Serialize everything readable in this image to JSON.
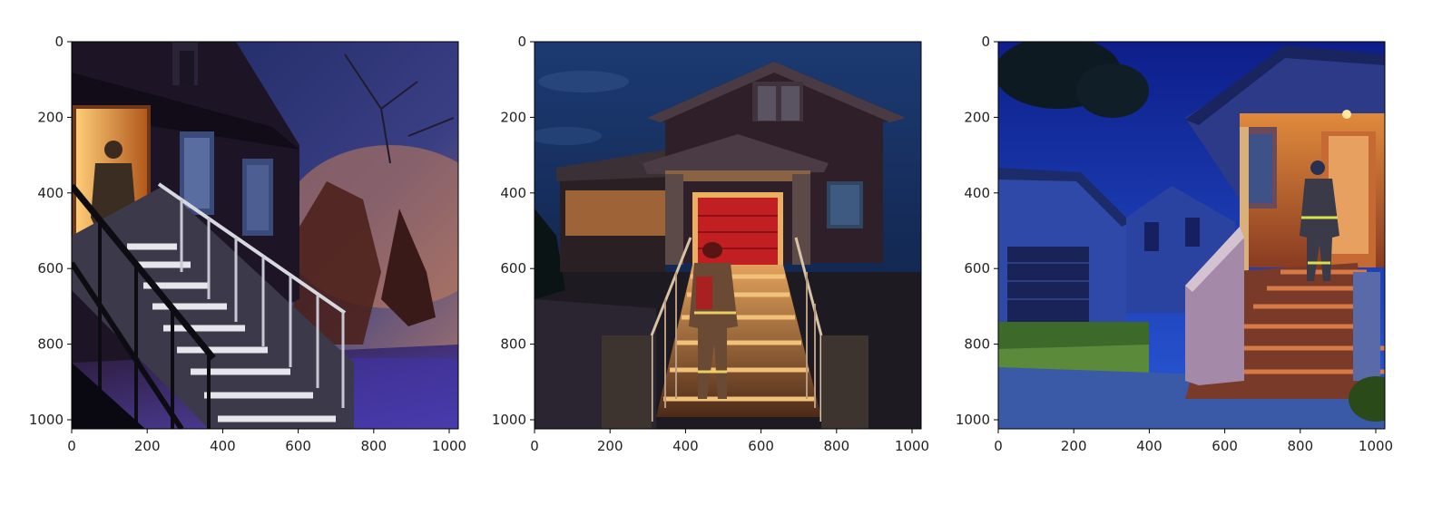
{
  "figure": {
    "panels": [
      {
        "id": "panel-1",
        "description_hidden": true,
        "x_ticks": [
          "0",
          "200",
          "400",
          "600",
          "800",
          "1000"
        ],
        "y_ticks": [
          "0",
          "200",
          "400",
          "600",
          "800",
          "1000"
        ]
      },
      {
        "id": "panel-2",
        "x_ticks": [
          "0",
          "200",
          "400",
          "600",
          "800",
          "1000"
        ],
        "y_ticks": [
          "0",
          "200",
          "400",
          "600",
          "800",
          "1000"
        ]
      },
      {
        "id": "panel-3",
        "x_ticks": [
          "0",
          "200",
          "400",
          "600",
          "800",
          "1000"
        ],
        "y_ticks": [
          "0",
          "200",
          "400",
          "600",
          "800",
          "1000"
        ]
      }
    ]
  }
}
